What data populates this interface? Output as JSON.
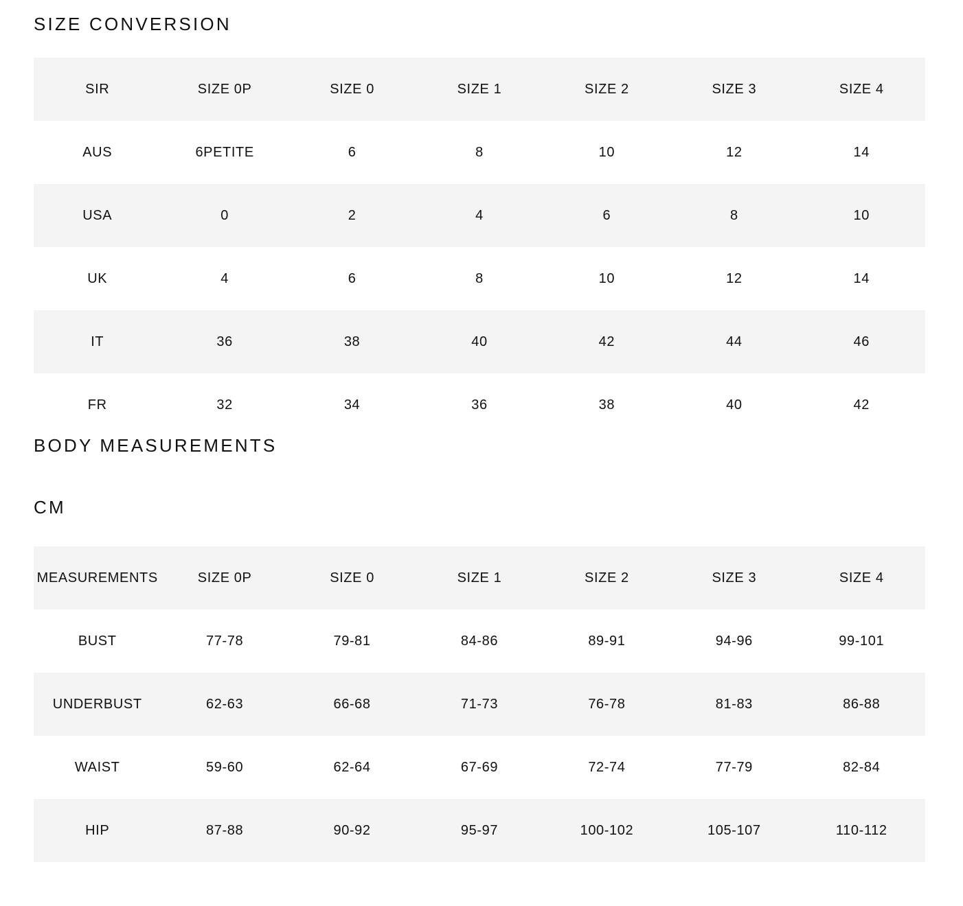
{
  "size_conversion": {
    "title": "SIZE CONVERSION",
    "rows": [
      [
        "SIR",
        "SIZE 0P",
        "SIZE 0",
        "SIZE 1",
        "SIZE 2",
        "SIZE 3",
        "SIZE 4"
      ],
      [
        "AUS",
        "6PETITE",
        "6",
        "8",
        "10",
        "12",
        "14"
      ],
      [
        "USA",
        "0",
        "2",
        "4",
        "6",
        "8",
        "10"
      ],
      [
        "UK",
        "4",
        "6",
        "8",
        "10",
        "12",
        "14"
      ],
      [
        "IT",
        "36",
        "38",
        "40",
        "42",
        "44",
        "46"
      ],
      [
        "FR",
        "32",
        "34",
        "36",
        "38",
        "40",
        "42"
      ]
    ]
  },
  "body_measurements": {
    "title": "BODY MEASUREMENTS",
    "unit": "CM",
    "rows": [
      [
        "MEASUREMENTS",
        "SIZE 0P",
        "SIZE 0",
        "SIZE 1",
        "SIZE 2",
        "SIZE 3",
        "SIZE 4"
      ],
      [
        "BUST",
        "77-78",
        "79-81",
        "84-86",
        "89-91",
        "94-96",
        "99-101"
      ],
      [
        "UNDERBUST",
        "62-63",
        "66-68",
        "71-73",
        "76-78",
        "81-83",
        "86-88"
      ],
      [
        "WAIST",
        "59-60",
        "62-64",
        "67-69",
        "72-74",
        "77-79",
        "82-84"
      ],
      [
        "HIP",
        "87-88",
        "90-92",
        "95-97",
        "100-102",
        "105-107",
        "110-112"
      ]
    ]
  },
  "colors": {
    "row_shade": "#f4f4f4",
    "text": "#111111"
  }
}
